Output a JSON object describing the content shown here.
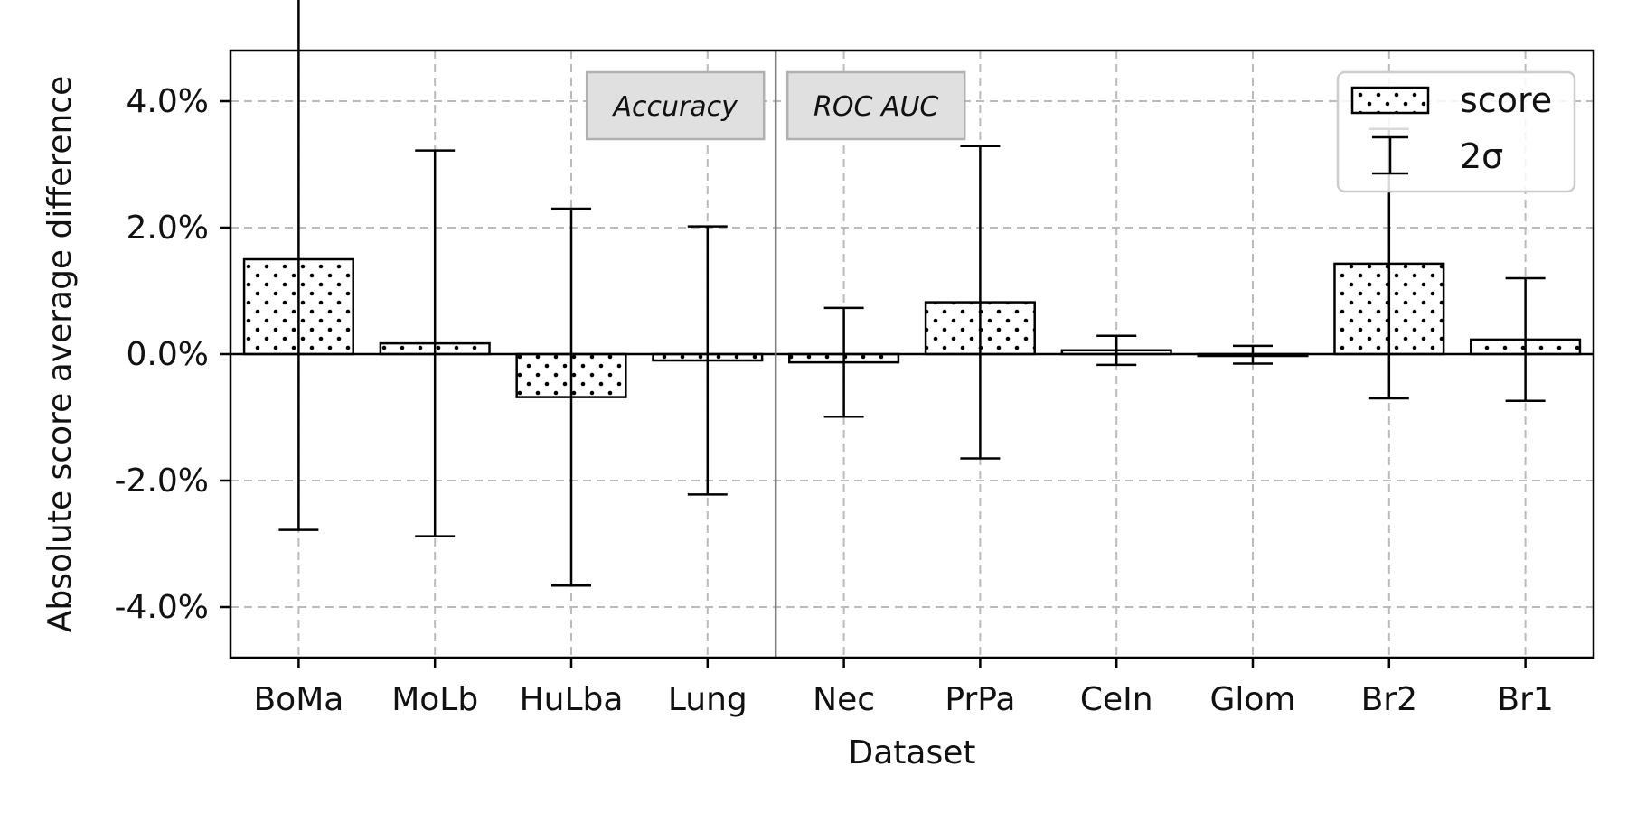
{
  "chart_data": {
    "type": "bar",
    "title": "",
    "xlabel": "Dataset",
    "ylabel": "Absolute score average difference",
    "ylim": [
      -4.8,
      4.8
    ],
    "y_ticks": [
      -4.0,
      -2.0,
      0.0,
      2.0,
      4.0
    ],
    "y_tick_labels": [
      "-4.0%",
      "-2.0%",
      "0.0%",
      "2.0%",
      "4.0%"
    ],
    "y_unit": "%",
    "categories": [
      "BoMa",
      "MoLb",
      "HuLba",
      "Lung",
      "Nec",
      "PrPa",
      "CeIn",
      "Glom",
      "Br2",
      "Br1"
    ],
    "series": [
      {
        "name": "score",
        "values": [
          1.5,
          0.17,
          -0.68,
          -0.1,
          -0.13,
          0.82,
          0.06,
          -0.01,
          1.43,
          0.23
        ],
        "error_2sigma": [
          4.28,
          3.05,
          2.98,
          2.12,
          0.86,
          2.47,
          0.23,
          0.14,
          2.13,
          0.97
        ]
      }
    ],
    "legend": {
      "position": "top-right",
      "entries": [
        {
          "label": "score",
          "marker": "dotted-bar"
        },
        {
          "label": "2σ",
          "marker": "errorbar"
        }
      ]
    },
    "annotations": [
      {
        "text": "Accuracy",
        "group": "left"
      },
      {
        "text": "ROC AUC",
        "group": "right"
      }
    ],
    "divider_after_category": "Lung",
    "grid": true,
    "colors": {
      "bar_fill": "#ffffff",
      "bar_edge": "#000000",
      "grid": "#bbbbbb",
      "divider": "#808080",
      "annot_bg": "#e0e0e0",
      "annot_edge": "#b0b0b0"
    }
  }
}
